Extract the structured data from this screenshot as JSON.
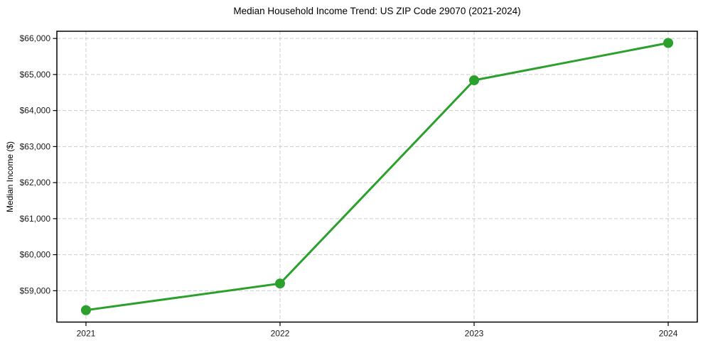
{
  "chart_data": {
    "type": "line",
    "title": "Median Household Income Trend: US ZIP Code 29070 (2021-2024)",
    "xlabel": "",
    "ylabel": "Median Income ($)",
    "x": [
      2021,
      2022,
      2023,
      2024
    ],
    "x_tick_labels": [
      "2021",
      "2022",
      "2023",
      "2024"
    ],
    "series": [
      {
        "name": "Median Household Income",
        "values": [
          58460,
          59200,
          64840,
          65875
        ]
      }
    ],
    "y_ticks": [
      {
        "value": 59000,
        "label": "$59,000"
      },
      {
        "value": 60000,
        "label": "$60,000"
      },
      {
        "value": 61000,
        "label": "$61,000"
      },
      {
        "value": 62000,
        "label": "$62,000"
      },
      {
        "value": 63000,
        "label": "$63,000"
      },
      {
        "value": 64000,
        "label": "$64,000"
      },
      {
        "value": 65000,
        "label": "$65,000"
      },
      {
        "value": 66000,
        "label": "$66,000"
      }
    ],
    "xlim": [
      2020.85,
      2024.15
    ],
    "ylim": [
      58130,
      66200
    ],
    "grid": true,
    "grid_style": "dashed",
    "legend": "none",
    "marker": "circle",
    "marker_radius": 7,
    "line_width": 3,
    "colors": {
      "line": "#2ca02c",
      "marker": "#2ca02c",
      "grid": "#cccccc",
      "spine": "#000000",
      "tick_text": "#1a1a1a",
      "background": "#ffffff"
    }
  }
}
